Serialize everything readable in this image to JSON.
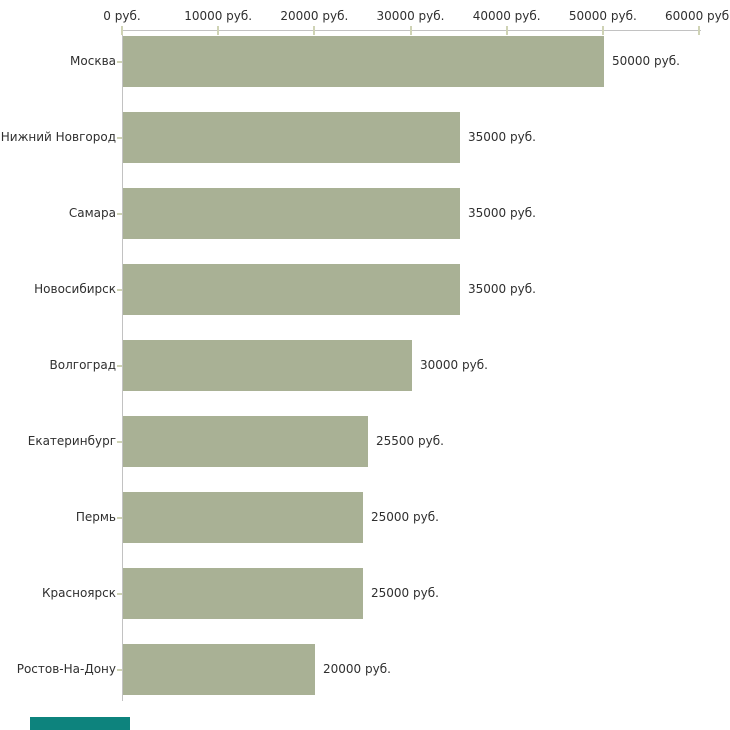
{
  "page": {
    "background": "#ffffff",
    "decor": {
      "teal_chip_color": "#0d837d"
    }
  },
  "chart_data": {
    "type": "bar",
    "orientation": "horizontal",
    "title": "",
    "unit": "руб.",
    "categories": [
      "Москва",
      "Нижний Новгород",
      "Самара",
      "Новосибирск",
      "Волгоград",
      "Екатеринбург",
      "Пермь",
      "Красноярск",
      "Ростов-На-Дону"
    ],
    "values": [
      50000,
      35000,
      35000,
      35000,
      30000,
      25500,
      25000,
      25000,
      20000
    ],
    "value_labels": [
      "50000 руб.",
      "35000 руб.",
      "35000 руб.",
      "35000 руб.",
      "30000 руб.",
      "25500 руб.",
      "25000 руб.",
      "25000 руб.",
      "20000 руб."
    ],
    "x_axis": {
      "position": "top",
      "ticks": [
        0,
        10000,
        20000,
        30000,
        40000,
        50000,
        60000
      ],
      "tick_labels": [
        "0 руб.",
        "10000 руб.",
        "20000 руб.",
        "30000 руб.",
        "40000 руб.",
        "50000 руб.",
        "60000 руб."
      ],
      "range": [
        0,
        60000
      ]
    },
    "ylabel": "",
    "xlabel": "",
    "grid": false,
    "legend": false,
    "colors": {
      "bar": "#a9b195",
      "axis_line": "#c2c2c2",
      "tick": "#cfd3b5",
      "text": "#2f2f2f"
    }
  }
}
